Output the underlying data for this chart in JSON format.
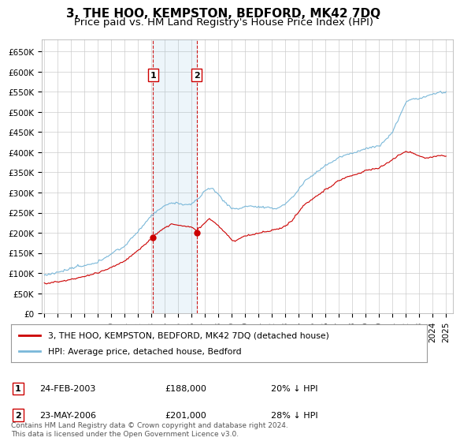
{
  "title": "3, THE HOO, KEMPSTON, BEDFORD, MK42 7DQ",
  "subtitle": "Price paid vs. HM Land Registry's House Price Index (HPI)",
  "title_fontsize": 11,
  "subtitle_fontsize": 9.5,
  "ylabel_ticks": [
    "£0",
    "£50K",
    "£100K",
    "£150K",
    "£200K",
    "£250K",
    "£300K",
    "£350K",
    "£400K",
    "£450K",
    "£500K",
    "£550K",
    "£600K",
    "£650K"
  ],
  "ytick_values": [
    0,
    50000,
    100000,
    150000,
    200000,
    250000,
    300000,
    350000,
    400000,
    450000,
    500000,
    550000,
    600000,
    650000
  ],
  "ylim": [
    0,
    680000
  ],
  "xlim_start": 1994.8,
  "xlim_end": 2025.5,
  "sale1_x": 2003.12,
  "sale1_y": 188000,
  "sale1_label": "1",
  "sale1_date": "24-FEB-2003",
  "sale1_price": "£188,000",
  "sale1_hpi": "20% ↓ HPI",
  "sale2_x": 2006.37,
  "sale2_y": 201000,
  "sale2_label": "2",
  "sale2_date": "23-MAY-2006",
  "sale2_price": "£201,000",
  "sale2_hpi": "28% ↓ HPI",
  "hpi_color": "#7ab8d9",
  "sale_color": "#cc0000",
  "background_color": "#ffffff",
  "plot_bg_color": "#ffffff",
  "grid_color": "#cccccc",
  "legend_label_sale": "3, THE HOO, KEMPSTON, BEDFORD, MK42 7DQ (detached house)",
  "legend_label_hpi": "HPI: Average price, detached house, Bedford",
  "footer": "Contains HM Land Registry data © Crown copyright and database right 2024.\nThis data is licensed under the Open Government Licence v3.0.",
  "xtick_years": [
    1995,
    1996,
    1997,
    1998,
    1999,
    2000,
    2001,
    2002,
    2003,
    2004,
    2005,
    2006,
    2007,
    2008,
    2009,
    2010,
    2011,
    2012,
    2013,
    2014,
    2015,
    2016,
    2017,
    2018,
    2019,
    2020,
    2021,
    2022,
    2023,
    2024,
    2025
  ]
}
